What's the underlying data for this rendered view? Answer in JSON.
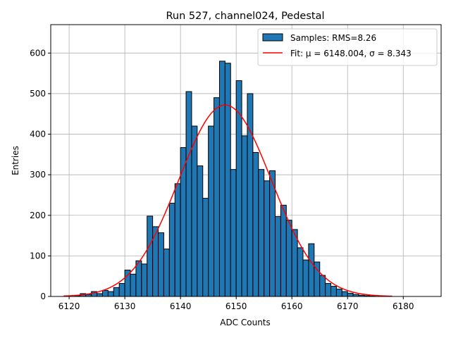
{
  "chart_data": {
    "type": "bar",
    "title": "Run 527, channel024, Pedestal",
    "xlabel": "ADC Counts",
    "ylabel": "Entries",
    "xlim": [
      6116.7,
      6186.8
    ],
    "ylim": [
      0,
      670
    ],
    "xticks": [
      6120,
      6130,
      6140,
      6150,
      6160,
      6170,
      6180
    ],
    "yticks": [
      0,
      100,
      200,
      300,
      400,
      500,
      600
    ],
    "grid": true,
    "legend_position": "top-right",
    "histogram": {
      "name": "Samples: RMS=8.26",
      "color": "#1f77b4",
      "bin_width": 1,
      "bins": [
        [
          6119,
          0
        ],
        [
          6120,
          0
        ],
        [
          6121,
          2
        ],
        [
          6122,
          7
        ],
        [
          6123,
          5
        ],
        [
          6124,
          12
        ],
        [
          6125,
          7
        ],
        [
          6126,
          15
        ],
        [
          6127,
          12
        ],
        [
          6128,
          22
        ],
        [
          6129,
          32
        ],
        [
          6130,
          65
        ],
        [
          6131,
          55
        ],
        [
          6132,
          88
        ],
        [
          6133,
          80
        ],
        [
          6134,
          198
        ],
        [
          6135,
          172
        ],
        [
          6136,
          157
        ],
        [
          6137,
          117
        ],
        [
          6138,
          230
        ],
        [
          6139,
          278
        ],
        [
          6140,
          367
        ],
        [
          6141,
          505
        ],
        [
          6142,
          420
        ],
        [
          6143,
          322
        ],
        [
          6144,
          242
        ],
        [
          6145,
          420
        ],
        [
          6146,
          490
        ],
        [
          6147,
          580
        ],
        [
          6148,
          575
        ],
        [
          6149,
          313
        ],
        [
          6150,
          532
        ],
        [
          6151,
          396
        ],
        [
          6152,
          500
        ],
        [
          6153,
          355
        ],
        [
          6154,
          313
        ],
        [
          6155,
          285
        ],
        [
          6156,
          310
        ],
        [
          6157,
          197
        ],
        [
          6158,
          225
        ],
        [
          6159,
          188
        ],
        [
          6160,
          165
        ],
        [
          6161,
          120
        ],
        [
          6162,
          90
        ],
        [
          6163,
          130
        ],
        [
          6164,
          85
        ],
        [
          6165,
          52
        ],
        [
          6166,
          32
        ],
        [
          6167,
          25
        ],
        [
          6168,
          18
        ],
        [
          6169,
          12
        ],
        [
          6170,
          8
        ],
        [
          6171,
          5
        ],
        [
          6172,
          3
        ],
        [
          6173,
          2
        ],
        [
          6174,
          1
        ]
      ]
    },
    "fit": {
      "name": "Fit: μ = 6148.004, σ = 8.343",
      "color": "#ff0000",
      "mu": 6148.004,
      "sigma": 8.343,
      "amplitude": 472,
      "x_range": [
        6119,
        6178
      ]
    }
  }
}
